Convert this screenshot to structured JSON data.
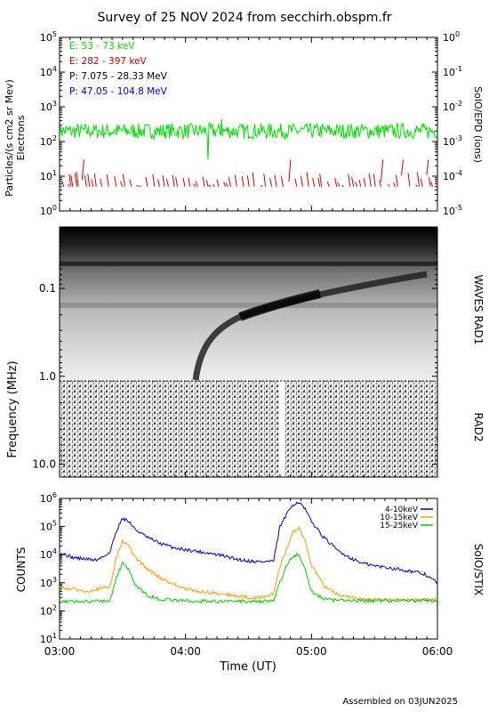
{
  "title": "Survey of 25 NOV 2024 from secchirh.obspm.fr",
  "footer": "Assembled on 03JUN2025",
  "colors": {
    "e_low": "#00dd00",
    "e_high": "#cc0000",
    "p_low": "#000000",
    "p_high": "#0000cc",
    "stix_low": "#0000cc",
    "stix_mid": "#ff9900",
    "stix_high": "#00cc00"
  },
  "chart_data": [
    {
      "type": "line",
      "panel": "particles",
      "ylabel": "Particles/(s cm2 sr Mev)",
      "ylabel2": "Electrons",
      "right_label": "SolO/EPD (ions)",
      "yscale": "log",
      "ylim": [
        1,
        100000
      ],
      "ylim_right": [
        1e-05,
        1
      ],
      "yticks": [
        "10^0",
        "10^1",
        "10^2",
        "10^3",
        "10^4",
        "10^5"
      ],
      "yticks_right": [
        "10^-5",
        "10^-4",
        "10^-3",
        "10^-2",
        "10^-1",
        "10^0"
      ],
      "x_range_ut_hours": [
        3,
        6
      ],
      "legend": [
        {
          "name": "E: 53 - 73 keV",
          "color": "#00dd00"
        },
        {
          "name": "E: 282 - 397 keV",
          "color": "#cc0000"
        },
        {
          "name": "P: 7.075 - 28.33 MeV",
          "color": "#000000"
        },
        {
          "name": "P: 47.05 - 104.8 MeV",
          "color": "#0000cc"
        }
      ],
      "series": [
        {
          "name": "E: 53 - 73 keV",
          "typical_value": 200,
          "min_value": 30,
          "max_value": 450
        },
        {
          "name": "E: 282 - 397 keV",
          "typical_value": 7,
          "min_value": 5,
          "max_value": 30
        }
      ]
    },
    {
      "type": "heatmap",
      "panel": "radio",
      "ylabel": "Frequency (MHz)",
      "right_labels": [
        "WAVES RAD1",
        "RAD2"
      ],
      "yscale": "log",
      "ylim": [
        0.02,
        14
      ],
      "yticks": [
        "0.1",
        "1.0",
        "10.0"
      ],
      "rad1_rad2_boundary_mhz": 1.0,
      "burst_onset_ut": "03:58",
      "x_range_ut_hours": [
        3,
        6
      ]
    },
    {
      "type": "line",
      "panel": "stix",
      "ylabel": "COUNTS",
      "right_label": "SolO/STIX",
      "yscale": "log",
      "ylim": [
        10,
        1000000
      ],
      "yticks": [
        "10^1",
        "10^2",
        "10^3",
        "10^4",
        "10^5",
        "10^6"
      ],
      "xlabel": "Time (UT)",
      "xticks": [
        "03:00",
        "04:00",
        "05:00",
        "06:00"
      ],
      "legend": [
        {
          "name": "4-10keV",
          "color": "#0000cc"
        },
        {
          "name": "10-15keV",
          "color": "#ff9900"
        },
        {
          "name": "15-25keV",
          "color": "#00cc00"
        }
      ],
      "x": [
        3.0,
        3.1,
        3.2,
        3.3,
        3.4,
        3.45,
        3.5,
        3.55,
        3.6,
        3.7,
        3.8,
        3.9,
        4.0,
        4.1,
        4.2,
        4.3,
        4.4,
        4.5,
        4.6,
        4.7,
        4.75,
        4.8,
        4.85,
        4.9,
        4.95,
        5.0,
        5.1,
        5.2,
        5.3,
        5.4,
        5.5,
        5.6,
        5.7,
        5.8,
        5.9,
        6.0
      ],
      "series": [
        {
          "name": "4-10keV",
          "values": [
            12000,
            8000,
            7000,
            6500,
            12000,
            70000,
            200000,
            150000,
            80000,
            40000,
            25000,
            18000,
            15000,
            13000,
            11000,
            9000,
            7000,
            6000,
            5500,
            6000,
            100000,
            250000,
            600000,
            750000,
            400000,
            150000,
            40000,
            15000,
            8000,
            5000,
            4000,
            3500,
            3000,
            2500,
            2000,
            1000
          ]
        },
        {
          "name": "10-15keV",
          "values": [
            700,
            600,
            500,
            600,
            700,
            8000,
            30000,
            20000,
            8000,
            3000,
            1500,
            900,
            600,
            500,
            450,
            400,
            350,
            300,
            300,
            400,
            4000,
            15000,
            60000,
            90000,
            30000,
            4000,
            800,
            400,
            300,
            250,
            250,
            250,
            250,
            250,
            250,
            250
          ]
        },
        {
          "name": "15-25keV",
          "values": [
            220,
            220,
            220,
            220,
            230,
            1500,
            5000,
            3000,
            800,
            350,
            260,
            240,
            230,
            220,
            220,
            220,
            220,
            220,
            220,
            230,
            1000,
            4000,
            9000,
            10000,
            3000,
            500,
            260,
            240,
            230,
            230,
            230,
            230,
            230,
            230,
            230,
            230
          ]
        }
      ]
    }
  ]
}
